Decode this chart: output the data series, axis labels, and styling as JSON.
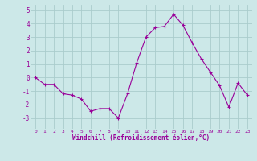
{
  "x": [
    0,
    1,
    2,
    3,
    4,
    5,
    6,
    7,
    8,
    9,
    10,
    11,
    12,
    13,
    14,
    15,
    16,
    17,
    18,
    19,
    20,
    21,
    22,
    23
  ],
  "y": [
    0.0,
    -0.5,
    -0.5,
    -1.2,
    -1.3,
    -1.6,
    -2.5,
    -2.3,
    -2.3,
    -3.0,
    -1.2,
    1.1,
    3.0,
    3.7,
    3.8,
    4.7,
    3.9,
    2.6,
    1.4,
    0.4,
    -0.6,
    -2.2,
    -0.4,
    -1.3
  ],
  "line_color": "#990099",
  "marker": "+",
  "marker_size": 3,
  "marker_lw": 0.8,
  "line_width": 0.8,
  "bg_color": "#cce8e8",
  "grid_color": "#aacccc",
  "xlabel": "Windchill (Refroidissement éolien,°C)",
  "xlabel_color": "#990099",
  "tick_color": "#990099",
  "ylim": [
    -3.8,
    5.4
  ],
  "yticks": [
    -3,
    -2,
    -1,
    0,
    1,
    2,
    3,
    4,
    5
  ],
  "xlim": [
    -0.5,
    23.5
  ],
  "xticks": [
    0,
    1,
    2,
    3,
    4,
    5,
    6,
    7,
    8,
    9,
    10,
    11,
    12,
    13,
    14,
    15,
    16,
    17,
    18,
    19,
    20,
    21,
    22,
    23
  ],
  "xtick_labels": [
    "0",
    "1",
    "2",
    "3",
    "4",
    "5",
    "6",
    "7",
    "8",
    "9",
    "10",
    "11",
    "12",
    "13",
    "14",
    "15",
    "16",
    "17",
    "18",
    "19",
    "20",
    "21",
    "22",
    "23"
  ],
  "figsize": [
    3.2,
    2.0
  ],
  "dpi": 100
}
